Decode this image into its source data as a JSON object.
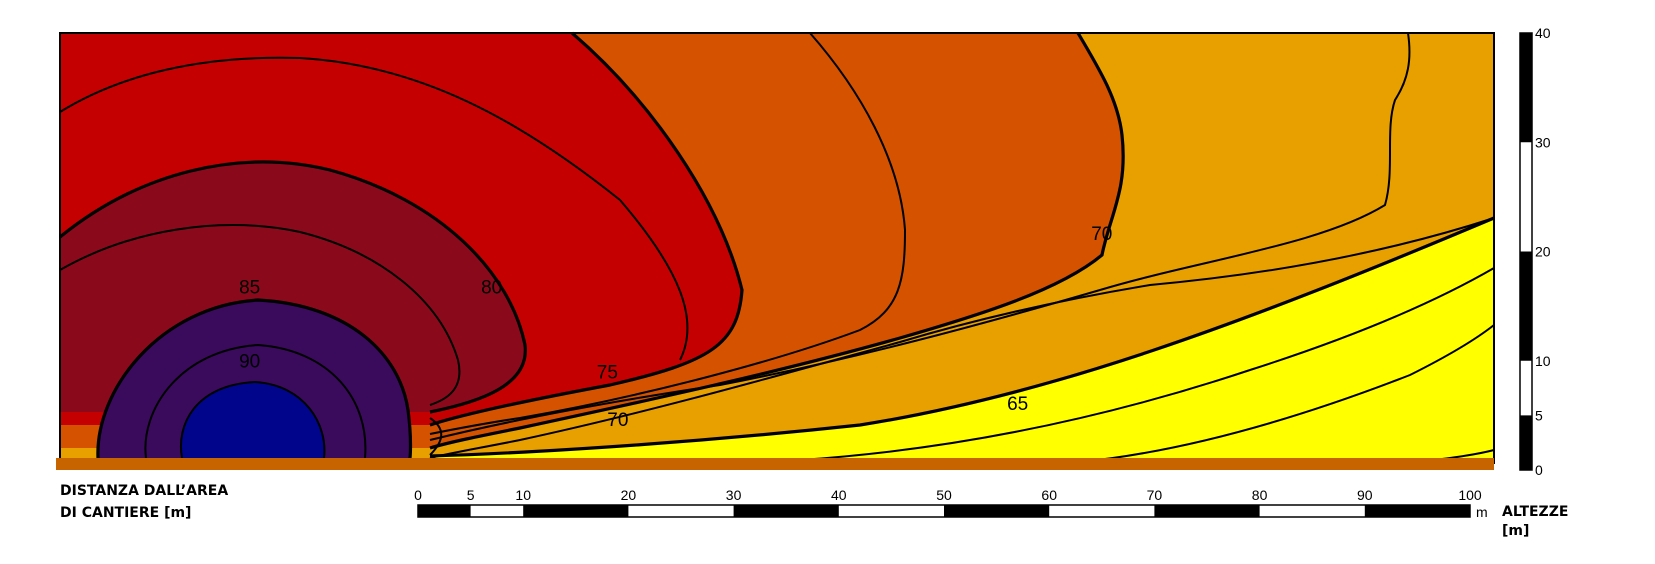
{
  "chart_data": {
    "type": "contour",
    "x_axis": {
      "label_lines": [
        "DISTANZA DALL’AREA",
        "DI CANTIERE [m]"
      ],
      "ticks": [
        0,
        5,
        10,
        20,
        30,
        40,
        50,
        60,
        70,
        80,
        90,
        100
      ],
      "unit": "m",
      "range": [
        0,
        100
      ]
    },
    "y_axis": {
      "label_lines": [
        "ALTEZZE",
        "[m]"
      ],
      "ticks": [
        0,
        5,
        10,
        20,
        30,
        40
      ],
      "range": [
        0,
        40
      ]
    },
    "levels": [
      {
        "label": "90",
        "color": "#3a0a5c"
      },
      {
        "label": "85",
        "color": "#8a0a1c"
      },
      {
        "label": "80",
        "color": "#c40000"
      },
      {
        "label": "75",
        "color": "#d45200"
      },
      {
        "label": "70",
        "color": "#e8a000"
      },
      {
        "label": "65",
        "color": "#ffff00"
      }
    ],
    "peak_region": {
      "color": "#00058c"
    },
    "ground_color": "#c86400",
    "contour_labels": [
      {
        "text": "90",
        "x": -16,
        "y": 8.5
      },
      {
        "text": "85",
        "x": -16,
        "y": 15.5
      },
      {
        "text": "80",
        "x": 7,
        "y": 15.5
      },
      {
        "text": "75",
        "x": 18,
        "y": 7.5
      },
      {
        "text": "70",
        "x": 19,
        "y": 3.0
      },
      {
        "text": "70",
        "x": 65,
        "y": 20.5
      },
      {
        "text": "65",
        "x": 57,
        "y": 4.5
      }
    ]
  }
}
